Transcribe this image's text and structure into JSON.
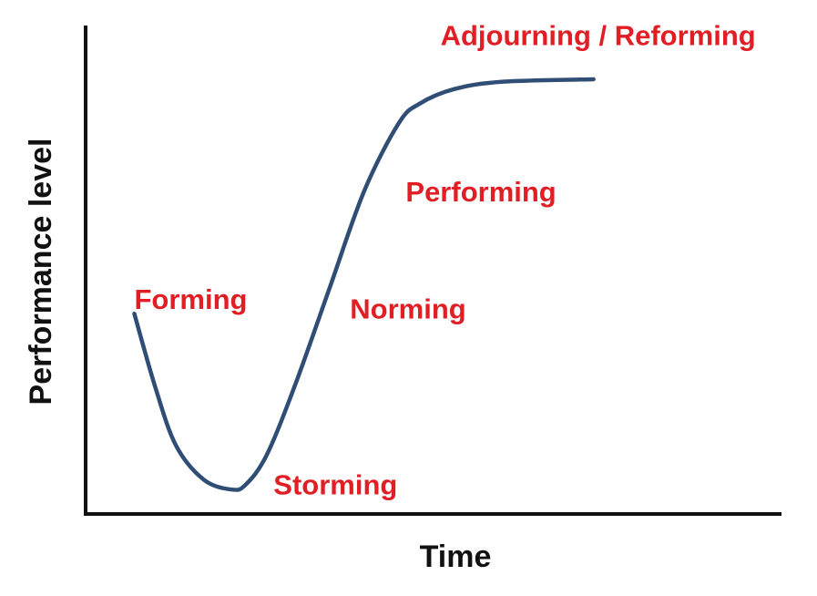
{
  "chart_data": {
    "type": "line",
    "title": "",
    "xlabel": "Time",
    "ylabel": "Performance level",
    "x_ticks": false,
    "y_ticks": false,
    "grid": false,
    "series": [
      {
        "color": "#2f4d75",
        "points": [
          [
            0.07,
            0.41
          ],
          [
            0.1,
            0.26
          ],
          [
            0.13,
            0.14
          ],
          [
            0.17,
            0.07
          ],
          [
            0.21,
            0.05
          ],
          [
            0.23,
            0.06
          ],
          [
            0.26,
            0.12
          ],
          [
            0.3,
            0.26
          ],
          [
            0.35,
            0.46
          ],
          [
            0.4,
            0.66
          ],
          [
            0.45,
            0.8
          ],
          [
            0.48,
            0.84
          ],
          [
            0.53,
            0.87
          ],
          [
            0.6,
            0.885
          ],
          [
            0.73,
            0.89
          ]
        ]
      }
    ],
    "annotations": [
      {
        "text": "Forming",
        "x": 0.07,
        "y": 0.42
      },
      {
        "text": "Storming",
        "x": 0.27,
        "y": 0.04
      },
      {
        "text": "Norming",
        "x": 0.38,
        "y": 0.4
      },
      {
        "text": "Performing",
        "x": 0.46,
        "y": 0.64
      },
      {
        "text": "Adjourning / Reforming",
        "x": 0.51,
        "y": 0.96
      }
    ],
    "annotation_color": "#e01e24"
  }
}
